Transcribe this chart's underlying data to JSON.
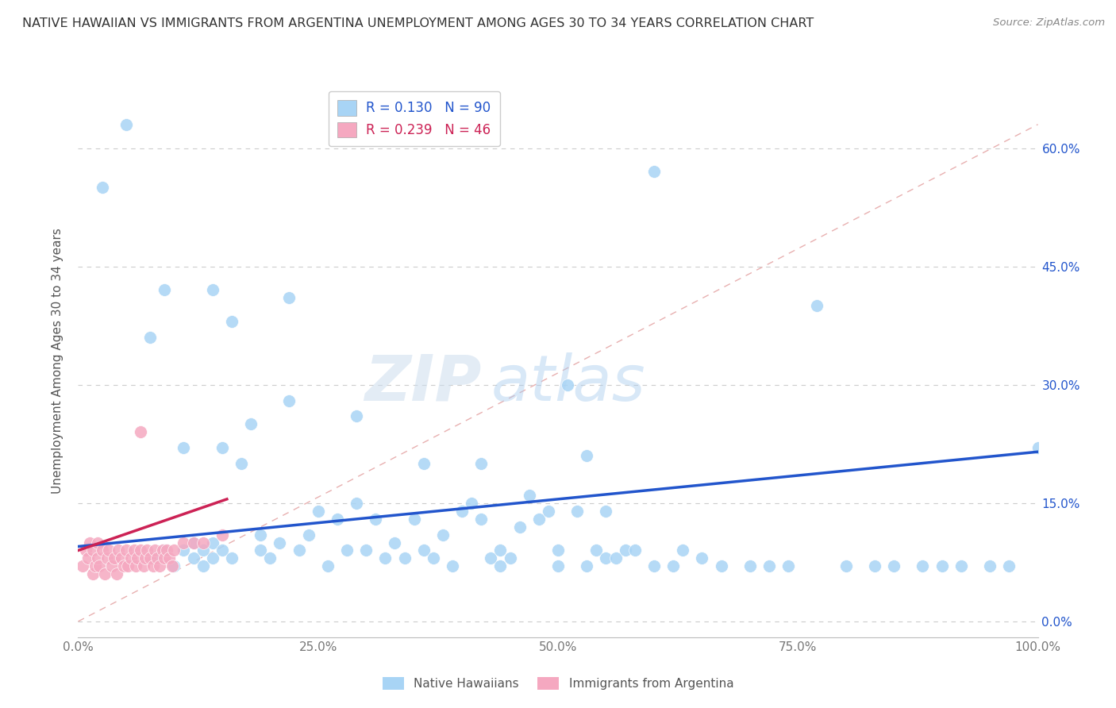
{
  "title": "NATIVE HAWAIIAN VS IMMIGRANTS FROM ARGENTINA UNEMPLOYMENT AMONG AGES 30 TO 34 YEARS CORRELATION CHART",
  "source": "Source: ZipAtlas.com",
  "ylabel": "Unemployment Among Ages 30 to 34 years",
  "xlim": [
    0.0,
    1.0
  ],
  "ylim": [
    -0.02,
    0.68
  ],
  "x_tick_vals": [
    0.0,
    0.25,
    0.5,
    0.75,
    1.0
  ],
  "x_tick_labels": [
    "0.0%",
    "25.0%",
    "50.0%",
    "75.0%",
    "100.0%"
  ],
  "y_tick_vals": [
    0.0,
    0.15,
    0.3,
    0.45,
    0.6
  ],
  "y_tick_labels": [
    "0.0%",
    "15.0%",
    "30.0%",
    "45.0%",
    "60.0%"
  ],
  "blue_color": "#A8D4F5",
  "pink_color": "#F5A8C0",
  "blue_line_color": "#2255CC",
  "pink_line_color": "#CC2255",
  "dashed_line_color": "#E8B0B0",
  "legend_R_blue": "0.130",
  "legend_N_blue": "90",
  "legend_R_pink": "0.239",
  "legend_N_pink": "46",
  "watermark_left": "ZIP",
  "watermark_right": "atlas",
  "background_color": "#FFFFFF",
  "grid_color": "#CCCCCC",
  "blue_scatter_x": [
    0.025,
    0.05,
    0.08,
    0.09,
    0.1,
    0.11,
    0.11,
    0.12,
    0.12,
    0.13,
    0.13,
    0.14,
    0.14,
    0.15,
    0.15,
    0.16,
    0.17,
    0.18,
    0.19,
    0.19,
    0.2,
    0.21,
    0.22,
    0.23,
    0.24,
    0.25,
    0.26,
    0.27,
    0.28,
    0.29,
    0.3,
    0.31,
    0.32,
    0.33,
    0.34,
    0.35,
    0.36,
    0.37,
    0.38,
    0.39,
    0.4,
    0.41,
    0.42,
    0.43,
    0.44,
    0.44,
    0.45,
    0.46,
    0.47,
    0.48,
    0.49,
    0.5,
    0.5,
    0.51,
    0.52,
    0.53,
    0.54,
    0.55,
    0.55,
    0.56,
    0.57,
    0.58,
    0.6,
    0.62,
    0.63,
    0.65,
    0.67,
    0.7,
    0.72,
    0.74,
    0.77,
    0.8,
    0.83,
    0.85,
    0.88,
    0.9,
    0.92,
    0.95,
    0.97,
    1.0,
    0.075,
    0.09,
    0.14,
    0.16,
    0.22,
    0.29,
    0.36,
    0.42,
    0.53,
    0.6
  ],
  "blue_scatter_y": [
    0.55,
    0.63,
    0.08,
    0.09,
    0.07,
    0.09,
    0.22,
    0.08,
    0.1,
    0.07,
    0.09,
    0.08,
    0.1,
    0.22,
    0.09,
    0.08,
    0.2,
    0.25,
    0.09,
    0.11,
    0.08,
    0.1,
    0.28,
    0.09,
    0.11,
    0.14,
    0.07,
    0.13,
    0.09,
    0.15,
    0.09,
    0.13,
    0.08,
    0.1,
    0.08,
    0.13,
    0.09,
    0.08,
    0.11,
    0.07,
    0.14,
    0.15,
    0.13,
    0.08,
    0.07,
    0.09,
    0.08,
    0.12,
    0.16,
    0.13,
    0.14,
    0.07,
    0.09,
    0.3,
    0.14,
    0.07,
    0.09,
    0.08,
    0.14,
    0.08,
    0.09,
    0.09,
    0.07,
    0.07,
    0.09,
    0.08,
    0.07,
    0.07,
    0.07,
    0.07,
    0.4,
    0.07,
    0.07,
    0.07,
    0.07,
    0.07,
    0.07,
    0.07,
    0.07,
    0.22,
    0.36,
    0.42,
    0.42,
    0.38,
    0.41,
    0.26,
    0.2,
    0.2,
    0.21,
    0.57
  ],
  "pink_scatter_x": [
    0.005,
    0.008,
    0.01,
    0.012,
    0.015,
    0.015,
    0.018,
    0.02,
    0.02,
    0.022,
    0.025,
    0.028,
    0.03,
    0.032,
    0.035,
    0.038,
    0.04,
    0.042,
    0.045,
    0.048,
    0.05,
    0.052,
    0.055,
    0.058,
    0.06,
    0.062,
    0.065,
    0.068,
    0.07,
    0.072,
    0.075,
    0.078,
    0.08,
    0.082,
    0.085,
    0.088,
    0.09,
    0.092,
    0.095,
    0.098,
    0.1,
    0.11,
    0.12,
    0.13,
    0.15,
    0.065
  ],
  "pink_scatter_y": [
    0.07,
    0.09,
    0.08,
    0.1,
    0.06,
    0.09,
    0.07,
    0.08,
    0.1,
    0.07,
    0.09,
    0.06,
    0.08,
    0.09,
    0.07,
    0.08,
    0.06,
    0.09,
    0.08,
    0.07,
    0.09,
    0.07,
    0.08,
    0.09,
    0.07,
    0.08,
    0.09,
    0.07,
    0.08,
    0.09,
    0.08,
    0.07,
    0.09,
    0.08,
    0.07,
    0.09,
    0.08,
    0.09,
    0.08,
    0.07,
    0.09,
    0.1,
    0.1,
    0.1,
    0.11,
    0.24
  ],
  "blue_regline_x": [
    0.0,
    1.0
  ],
  "blue_regline_y": [
    0.095,
    0.215
  ],
  "pink_regline_x": [
    0.0,
    0.155
  ],
  "pink_regline_y": [
    0.09,
    0.155
  ],
  "diag_line_x": [
    0.0,
    1.0
  ],
  "diag_line_y": [
    0.0,
    0.63
  ]
}
